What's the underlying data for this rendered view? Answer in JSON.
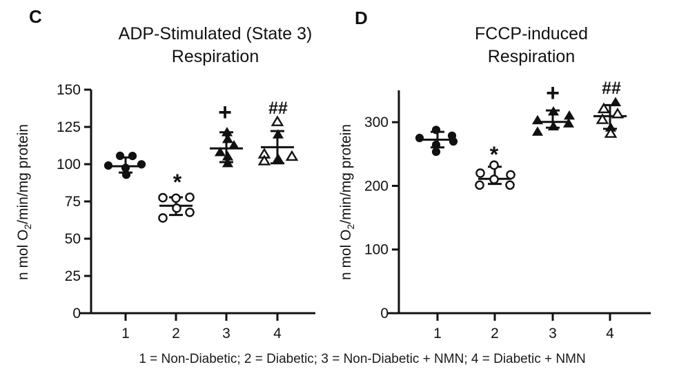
{
  "chart_data": {
    "type": "scatter",
    "caption": "1 = Non-Diabetic; 2 = Diabetic; 3 = Non-Diabetic + NMN; 4 = Diabetic + NMN",
    "ylabel_pre": "n mol O",
    "ylabel_sub": "2",
    "ylabel_post": "/min/mg protein",
    "panels": [
      {
        "letter": "C",
        "title_lines": [
          "ADP-Stimulated (State 3)",
          "Respiration"
        ],
        "categories": [
          "1",
          "2",
          "3",
          "4"
        ],
        "yticks": [
          0,
          25,
          50,
          75,
          100,
          125,
          150
        ],
        "ylim": [
          0,
          150
        ],
        "axis_top_value": 150,
        "grid": false,
        "groups": [
          {
            "id": "1",
            "label": "Non-Diabetic",
            "marker": "circle",
            "fill": "solid",
            "annotation": "",
            "mean": 98.6,
            "sd_low": 94.4,
            "sd_high": 104.5,
            "points": [
              {
                "v": 105.6,
                "dx": -8
              },
              {
                "v": 105.5,
                "dx": 10
              },
              {
                "v": 99.9,
                "dx": 23
              },
              {
                "v": 99.1,
                "dx": -25
              },
              {
                "v": 97.5,
                "dx": 0
              },
              {
                "v": 92.9,
                "dx": 1
              }
            ]
          },
          {
            "id": "2",
            "label": "Diabetic",
            "marker": "circle",
            "fill": "open",
            "annotation": "*",
            "mean": 72.1,
            "sd_low": 65.9,
            "sd_high": 77.8,
            "points": [
              {
                "v": 77.8,
                "dx": 20
              },
              {
                "v": 77.5,
                "dx": -19
              },
              {
                "v": 77.2,
                "dx": 0
              },
              {
                "v": 70.5,
                "dx": 1
              },
              {
                "v": 67.7,
                "dx": 20
              },
              {
                "v": 63.9,
                "dx": -19
              }
            ]
          },
          {
            "id": "3",
            "label": "Non-Diabetic + NMN",
            "marker": "triangle",
            "fill": "solid",
            "annotation": "+",
            "mean": 110.6,
            "sd_low": 101.4,
            "sd_high": 121.4,
            "points": [
              {
                "v": 121.4,
                "dx": 1
              },
              {
                "v": 116.8,
                "dx": 2
              },
              {
                "v": 112.6,
                "dx": 11
              },
              {
                "v": 108.0,
                "dx": -9
              },
              {
                "v": 105.2,
                "dx": 2
              },
              {
                "v": 100.6,
                "dx": 2
              }
            ]
          },
          {
            "id": "4",
            "label": "Diabetic + NMN",
            "marker": "triangle",
            "fill": "open",
            "annotation": "##",
            "mean": 111.4,
            "sd_low": 100.6,
            "sd_high": 122.2,
            "points": [
              {
                "v": 128.5,
                "dx": 0
              },
              {
                "v": 119.9,
                "dx": 1,
                "filled": true
              },
              {
                "v": 106.8,
                "dx": -19
              },
              {
                "v": 105.2,
                "dx": 21
              },
              {
                "v": 103.7,
                "dx": 1,
                "filled": true
              },
              {
                "v": 102.2,
                "dx": -19
              }
            ]
          }
        ]
      },
      {
        "letter": "D",
        "title_lines": [
          "FCCP-induced",
          "Respiration"
        ],
        "categories": [
          "1",
          "2",
          "3",
          "4"
        ],
        "yticks": [
          0,
          100,
          200,
          300
        ],
        "ylim": [
          0,
          350
        ],
        "axis_top_value": 350,
        "grid": false,
        "groups": [
          {
            "id": "1",
            "label": "Non-Diabetic",
            "marker": "circle",
            "fill": "solid",
            "annotation": "",
            "mean": 272.5,
            "sd_low": 260.5,
            "sd_high": 284.9,
            "points": [
              {
                "v": 287.9,
                "dx": -2
              },
              {
                "v": 278.8,
                "dx": 21
              },
              {
                "v": 275.2,
                "dx": -26
              },
              {
                "v": 269.8,
                "dx": 23
              },
              {
                "v": 264.4,
                "dx": -2
              },
              {
                "v": 253.5,
                "dx": -2
              }
            ]
          },
          {
            "id": "2",
            "label": "Diabetic",
            "marker": "circle",
            "fill": "open",
            "annotation": "*",
            "mean": 211.0,
            "sd_low": 203.0,
            "sd_high": 230.0,
            "points": [
              {
                "v": 232.6,
                "dx": -1
              },
              {
                "v": 220.0,
                "dx": -21
              },
              {
                "v": 217.4,
                "dx": 23
              },
              {
                "v": 210.2,
                "dx": -1
              },
              {
                "v": 201.2,
                "dx": -22
              },
              {
                "v": 201.2,
                "dx": 22
              }
            ]
          },
          {
            "id": "3",
            "label": "Non-Diabetic + NMN",
            "marker": "triangle",
            "fill": "solid",
            "annotation": "+",
            "mean": 300.4,
            "sd_low": 291.4,
            "sd_high": 318.5,
            "points": [
              {
                "v": 316.7,
                "dx": 1
              },
              {
                "v": 310.2,
                "dx": 24
              },
              {
                "v": 303.0,
                "dx": -22
              },
              {
                "v": 297.9,
                "dx": 23
              },
              {
                "v": 293.3,
                "dx": 1
              },
              {
                "v": 284.9,
                "dx": -22
              }
            ]
          },
          {
            "id": "4",
            "label": "Diabetic + NMN",
            "marker": "triangle",
            "fill": "open",
            "annotation": "##",
            "mean": 309.5,
            "sd_low": 289.6,
            "sd_high": 326.8,
            "points": [
              {
                "v": 331.2,
                "dx": 8,
                "filled": true
              },
              {
                "v": 321.1,
                "dx": -9
              },
              {
                "v": 313.1,
                "dx": 11
              },
              {
                "v": 304.1,
                "dx": -11
              },
              {
                "v": 291.4,
                "dx": 1,
                "filled": true
              },
              {
                "v": 282.4,
                "dx": 1
              }
            ]
          }
        ]
      }
    ]
  }
}
